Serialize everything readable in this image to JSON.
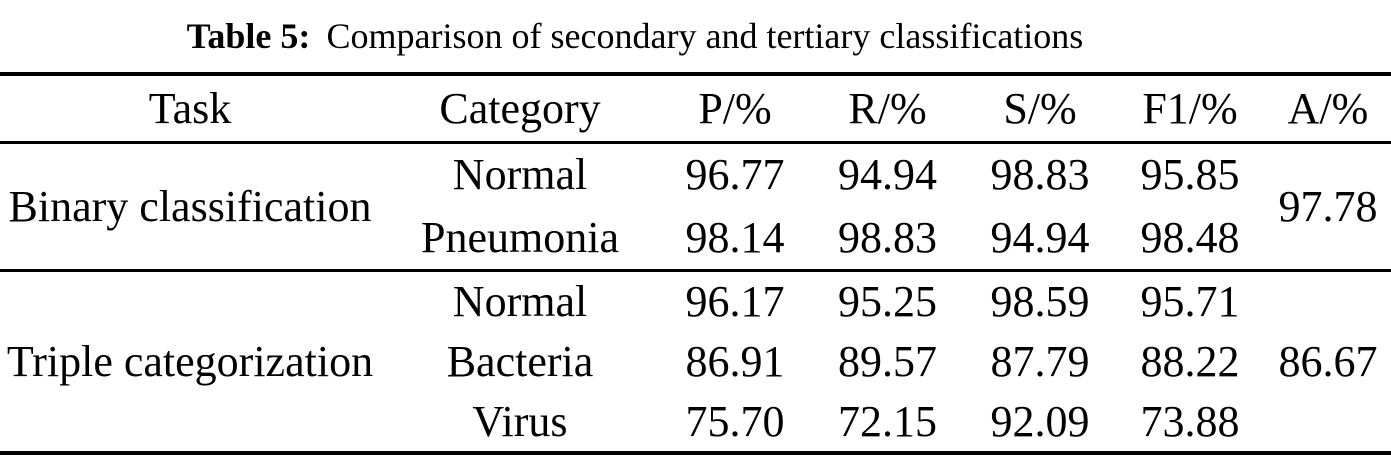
{
  "colors": {
    "background": "#ffffff",
    "text": "#000000",
    "rule": "#000000"
  },
  "caption": {
    "label": "Table 5:",
    "text": "Comparison of secondary and tertiary classifications"
  },
  "table": {
    "columns": [
      "Task",
      "Category",
      "P/%",
      "R/%",
      "S/%",
      "F1/%",
      "A/%"
    ],
    "sections": [
      {
        "task": "Binary classification",
        "accuracy": "97.78",
        "rows": [
          {
            "category": "Normal",
            "p": "96.77",
            "r": "94.94",
            "s": "98.83",
            "f1": "95.85"
          },
          {
            "category": "Pneumonia",
            "p": "98.14",
            "r": "98.83",
            "s": "94.94",
            "f1": "98.48"
          }
        ]
      },
      {
        "task": "Triple categorization",
        "accuracy": "86.67",
        "rows": [
          {
            "category": "Normal",
            "p": "96.17",
            "r": "95.25",
            "s": "98.59",
            "f1": "95.71"
          },
          {
            "category": "Bacteria",
            "p": "86.91",
            "r": "89.57",
            "s": "87.79",
            "f1": "88.22"
          },
          {
            "category": "Virus",
            "p": "75.70",
            "r": "72.15",
            "s": "92.09",
            "f1": "73.88"
          }
        ]
      }
    ]
  }
}
